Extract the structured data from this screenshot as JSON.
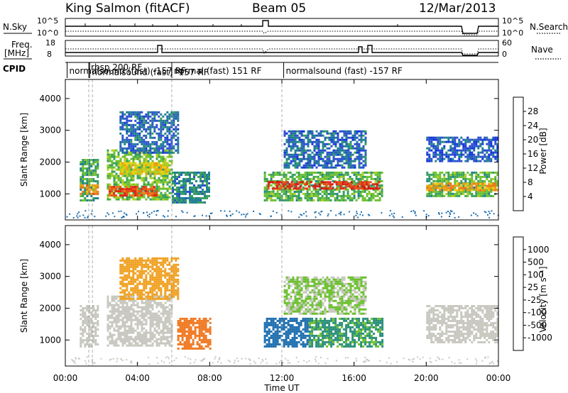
{
  "header": {
    "station": "King Salmon (fitACF)",
    "beam": "Beam 05",
    "date": "12/Mar/2013"
  },
  "side_labels": {
    "nsky": "N.Sky",
    "freq_line1": "Freq.",
    "freq_line2": "[MHz]",
    "cpid": "CPID",
    "nsearch": "N.Search",
    "nave": "Nave"
  },
  "axes": {
    "xlabel": "Time UT",
    "ylabel": "Slant Range [km]",
    "x_ticks": [
      "00:00",
      "04:00",
      "08:00",
      "12:00",
      "16:00",
      "20:00",
      "00:00"
    ],
    "y_ticks": [
      "1000",
      "2000",
      "3000",
      "4000"
    ],
    "nsky_left_ticks": [
      "10^5",
      "10^0"
    ],
    "nsky_right_ticks": [
      "10^5",
      "10^0"
    ],
    "freq_left_ticks": [
      "18",
      "8"
    ],
    "nave_right_ticks": [
      "60",
      "0"
    ]
  },
  "cpid_labels": [
    {
      "text": "normalsound (fast) -157 RF",
      "start_hour": 0.1
    },
    {
      "text": "rbsp 200 RF",
      "start_hour": 1.3
    },
    {
      "text": "normalsound (fast) -157 RF",
      "start_hour": 1.35
    },
    {
      "text": "normal (fast) 151 RF",
      "start_hour": 5.9
    },
    {
      "text": "normalsound (fast) -157 RF",
      "start_hour": 12.1
    }
  ],
  "power_colorbar": {
    "label": "Power [dB]",
    "ticks": [
      "4",
      "8",
      "12",
      "16",
      "20",
      "24",
      "28"
    ],
    "colors": [
      "#1034d8",
      "#2a4fd0",
      "#1f7f8f",
      "#35a05a",
      "#6cc030",
      "#b0d020",
      "#f0d010",
      "#f0a010",
      "#f07818",
      "#e85018",
      "#e02818",
      "#e01010"
    ]
  },
  "velocity_colorbar": {
    "label": "Velocity [m s⁻¹]",
    "ticks": [
      "1000",
      "500",
      "100",
      "25",
      "-25",
      "-100",
      "-500",
      "-1000"
    ],
    "colors": [
      "#2a4fd0",
      "#1f6fb0",
      "#2a8f7a",
      "#4ab040",
      "#7cd030",
      "#c8c8c0",
      "#c8c8c0",
      "#f0a020",
      "#f08020",
      "#f06020",
      "#e83018",
      "#e01010"
    ]
  },
  "chart_data": [
    {
      "type": "heatmap",
      "quantity": "Power",
      "x_range_hours": [
        0,
        24
      ],
      "y_range_km": [
        180,
        4600
      ],
      "z_range": [
        0,
        30
      ],
      "regions": [
        {
          "t0": 0.8,
          "t1": 1.8,
          "r0": 800,
          "r1": 2100,
          "value": 9
        },
        {
          "t0": 0.8,
          "t1": 1.8,
          "r0": 1000,
          "r1": 1300,
          "value": 20
        },
        {
          "t0": 2.3,
          "t1": 5.9,
          "r0": 850,
          "r1": 2400,
          "value": 11
        },
        {
          "t0": 2.4,
          "t1": 5.0,
          "r0": 950,
          "r1": 1250,
          "value": 24
        },
        {
          "t0": 3.0,
          "t1": 5.6,
          "r0": 1600,
          "r1": 2000,
          "value": 16
        },
        {
          "t0": 3.0,
          "t1": 6.2,
          "r0": 2300,
          "r1": 3600,
          "value": 5
        },
        {
          "t0": 5.9,
          "t1": 8.0,
          "r0": 700,
          "r1": 1700,
          "value": 7
        },
        {
          "t0": 11.0,
          "t1": 17.6,
          "r0": 800,
          "r1": 1700,
          "value": 10
        },
        {
          "t0": 11.2,
          "t1": 17.4,
          "r0": 1150,
          "r1": 1400,
          "value": 26
        },
        {
          "t0": 12.1,
          "t1": 16.6,
          "r0": 1800,
          "r1": 3000,
          "value": 5
        },
        {
          "t0": 20.0,
          "t1": 24.0,
          "r0": 900,
          "r1": 1700,
          "value": 10
        },
        {
          "t0": 20.0,
          "t1": 24.0,
          "r0": 1100,
          "r1": 1350,
          "value": 19
        },
        {
          "t0": 20.0,
          "t1": 24.0,
          "r0": 2000,
          "r1": 2800,
          "value": 4
        }
      ]
    },
    {
      "type": "heatmap",
      "quantity": "Velocity",
      "x_range_hours": [
        0,
        24
      ],
      "y_range_km": [
        180,
        4600
      ],
      "z_range": [
        -1000,
        1000
      ],
      "regions": [
        {
          "t0": 0.8,
          "t1": 1.8,
          "r0": 800,
          "r1": 2100,
          "value": 0
        },
        {
          "t0": 2.3,
          "t1": 5.9,
          "r0": 850,
          "r1": 2400,
          "value": 0
        },
        {
          "t0": 3.0,
          "t1": 6.2,
          "r0": 2300,
          "r1": 3600,
          "value": -60
        },
        {
          "t0": 6.2,
          "t1": 8.0,
          "r0": 700,
          "r1": 1700,
          "value": -250
        },
        {
          "t0": 11.0,
          "t1": 13.5,
          "r0": 800,
          "r1": 1700,
          "value": 200
        },
        {
          "t0": 13.5,
          "t1": 17.6,
          "r0": 800,
          "r1": 1700,
          "value": 60
        },
        {
          "t0": 12.1,
          "t1": 16.6,
          "r0": 1800,
          "r1": 3000,
          "value": 30
        },
        {
          "t0": 20.0,
          "t1": 24.0,
          "r0": 900,
          "r1": 2100,
          "value": 0
        }
      ]
    }
  ]
}
